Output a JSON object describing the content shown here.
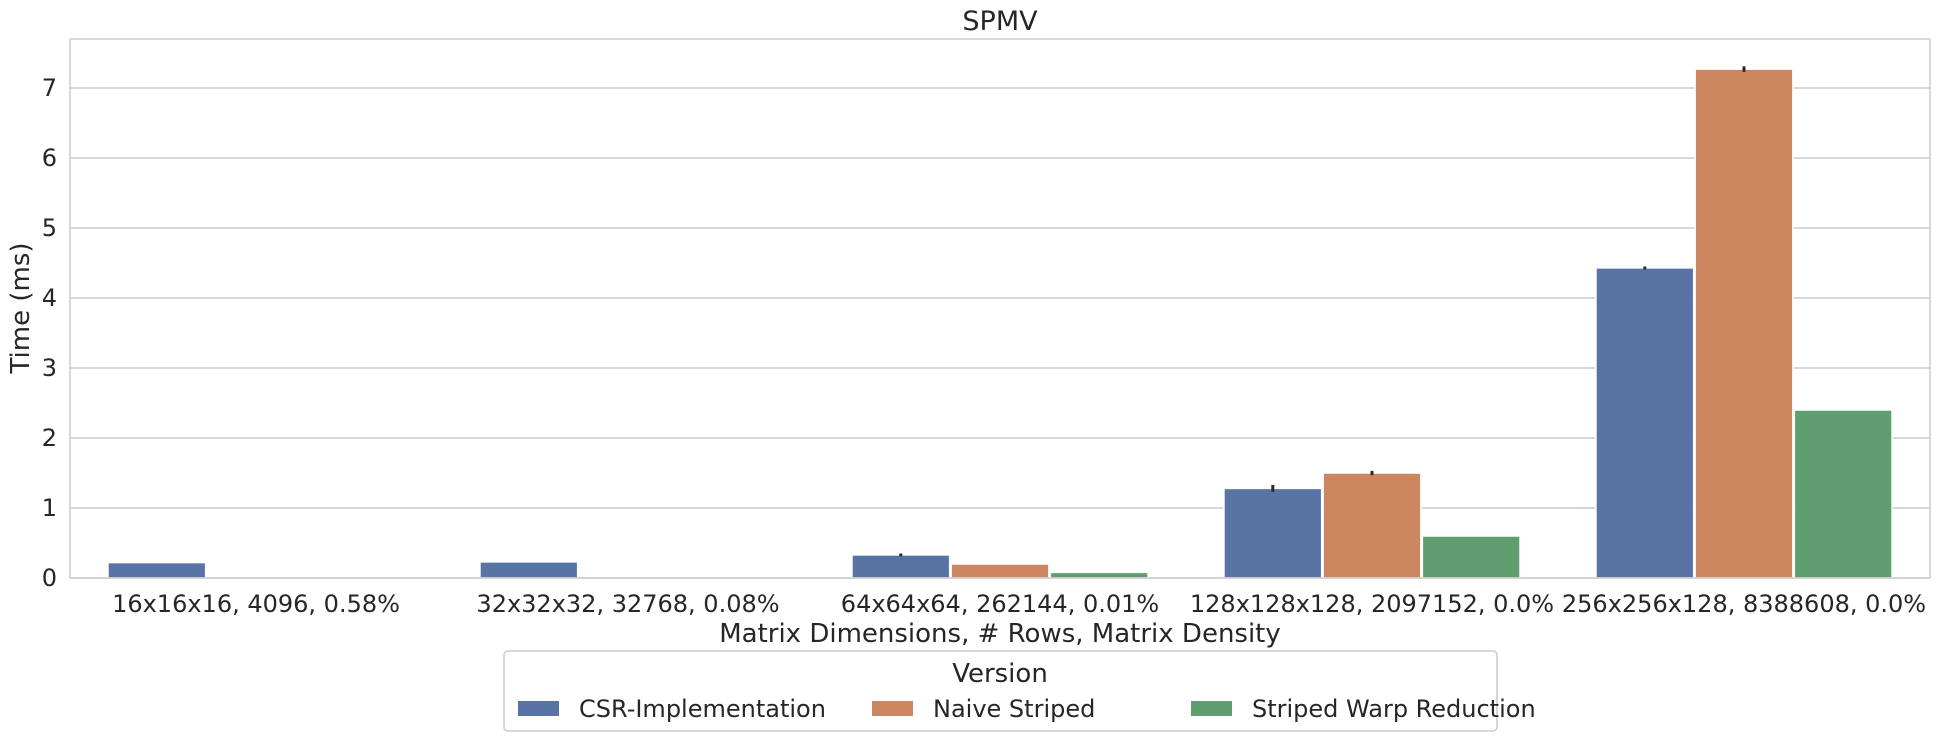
{
  "chart_data": {
    "type": "bar",
    "title": "SPMV",
    "xlabel": "Matrix Dimensions, # Rows, Matrix Density",
    "ylabel": "Time (ms)",
    "ylim": [
      0,
      7.7
    ],
    "yticks": [
      "0",
      "1",
      "2",
      "3",
      "4",
      "5",
      "6",
      "7"
    ],
    "grid": "horizontal",
    "categories": [
      "16x16x16, 4096, 0.58%",
      "32x32x32, 32768, 0.08%",
      "64x64x64, 262144, 0.01%",
      "128x128x128, 2097152, 0.0%",
      "256x256x128, 8388608, 0.0%"
    ],
    "series": [
      {
        "name": "CSR-Implementation",
        "color": "#5874a4",
        "values": [
          0.22,
          0.23,
          0.33,
          1.28,
          4.43
        ],
        "err": [
          0.0,
          0.0,
          0.02,
          0.05,
          0.02
        ]
      },
      {
        "name": "Naive Striped",
        "color": "#cd8760",
        "values": [
          0.0,
          0.0,
          0.2,
          1.5,
          7.27
        ],
        "err": [
          0.0,
          0.0,
          0.0,
          0.03,
          0.04
        ]
      },
      {
        "name": "Striped Warp Reduction",
        "color": "#5f9e6e",
        "values": [
          0.0,
          0.0,
          0.08,
          0.6,
          2.4
        ],
        "err": [
          0.0,
          0.0,
          0.0,
          0.0,
          0.0
        ]
      }
    ],
    "legend": {
      "title": "Version",
      "placement": "bottom-center"
    }
  }
}
